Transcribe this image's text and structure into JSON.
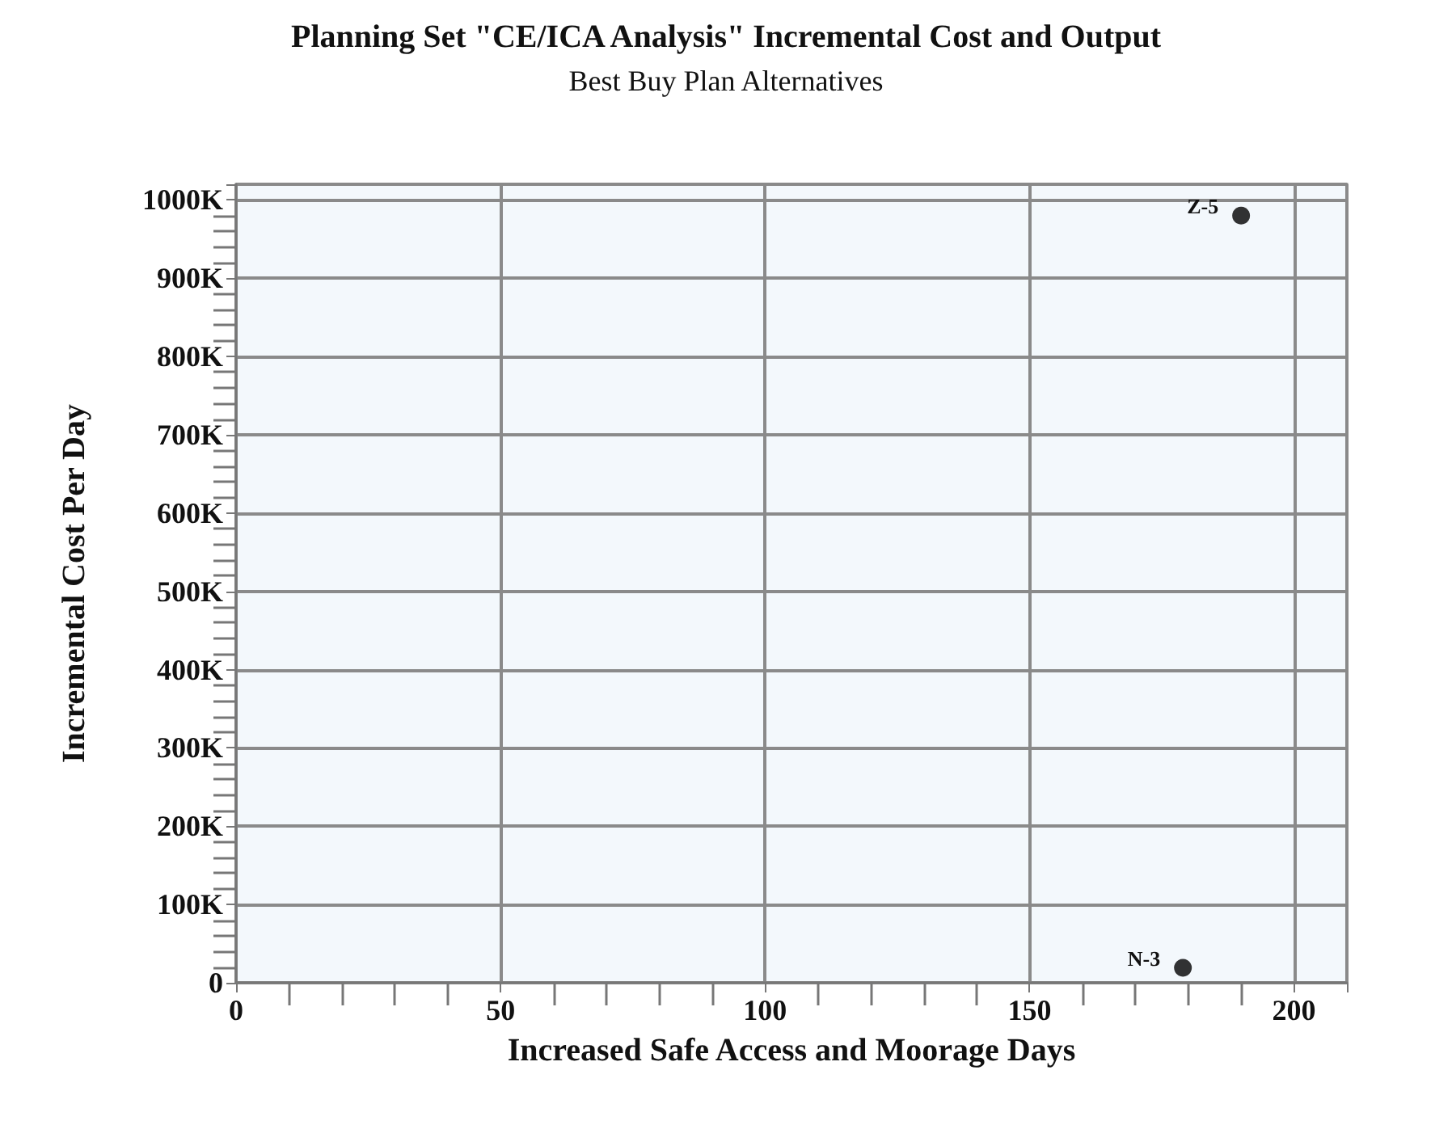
{
  "chart_data": {
    "type": "scatter",
    "title": "Planning Set \"CE/ICA Analysis\" Incremental Cost and Output",
    "subtitle": "Best Buy Plan Alternatives",
    "xlabel": "Increased Safe Access and Moorage Days",
    "ylabel": "Incremental Cost Per Day",
    "x": [
      179,
      190
    ],
    "values": [
      19000,
      980000
    ],
    "color": "#000000",
    "marker": "circle",
    "xlim": [
      0,
      210
    ],
    "xticks": [
      0,
      50,
      100,
      150,
      200
    ],
    "ylim": [
      0,
      1020000
    ],
    "yticks": [
      0,
      {
        "value": 100000,
        "label": "100K"
      },
      {
        "value": 200000,
        "label": "200K"
      },
      {
        "value": 300000,
        "label": "300K"
      },
      {
        "value": 400000,
        "label": "400K"
      },
      {
        "value": 500000,
        "label": "500K"
      },
      {
        "value": 600000,
        "label": "600K"
      },
      {
        "value": 700000,
        "label": "700K"
      },
      {
        "value": 800000,
        "label": "800K"
      },
      {
        "value": 900000,
        "label": "900K"
      },
      {
        "value": 1000000,
        "label": "1000K"
      }
    ],
    "grid": true,
    "annotations": [
      {
        "text": "N-3",
        "x": 179,
        "y": 19000
      },
      {
        "text": "Z-5",
        "x": 190,
        "y": 980000
      }
    ]
  }
}
